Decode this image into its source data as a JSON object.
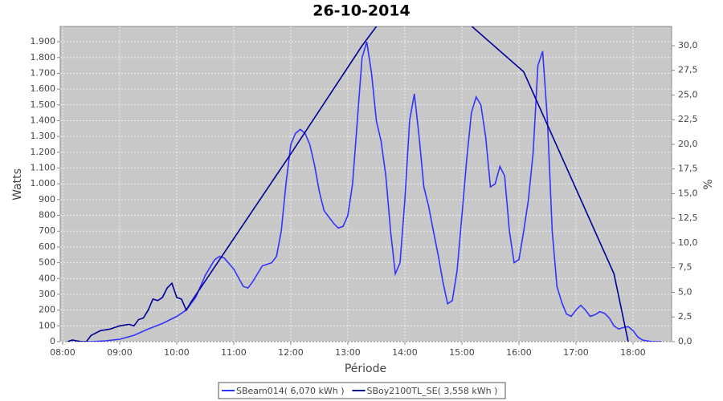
{
  "chart_data": {
    "type": "line",
    "title": "26-10-2014",
    "x_label": "Période",
    "y_label": "Watts",
    "y2_label": "%",
    "xlim": [
      477.5,
      1120.6
    ],
    "xticks": [
      {
        "value": 480,
        "label": "08:00"
      },
      {
        "value": 540,
        "label": "09:00"
      },
      {
        "value": 600,
        "label": "10:00"
      },
      {
        "value": 660,
        "label": "11:00"
      },
      {
        "value": 720,
        "label": "12:00"
      },
      {
        "value": 780,
        "label": "13:00"
      },
      {
        "value": 840,
        "label": "14:00"
      },
      {
        "value": 900,
        "label": "15:00"
      },
      {
        "value": 960,
        "label": "16:00"
      },
      {
        "value": 1020,
        "label": "17:00"
      },
      {
        "value": 1080,
        "label": "18:00"
      }
    ],
    "ylim": [
      0,
      1997
    ],
    "yticks": [
      0,
      100,
      200,
      300,
      400,
      500,
      600,
      700,
      800,
      900,
      {
        "value": 1000,
        "label": "1.000"
      },
      {
        "value": 1100,
        "label": "1.100"
      },
      {
        "value": 1200,
        "label": "1.200"
      },
      {
        "value": 1300,
        "label": "1.300"
      },
      {
        "value": 1400,
        "label": "1.400"
      },
      {
        "value": 1500,
        "label": "1.500"
      },
      {
        "value": 1600,
        "label": "1.600"
      },
      {
        "value": 1700,
        "label": "1.700"
      },
      {
        "value": 1800,
        "label": "1.800"
      },
      {
        "value": 1900,
        "label": "1.900"
      }
    ],
    "y2lim": [
      0,
      31.95
    ],
    "y2ticks": [
      {
        "value": 0,
        "label": "0,0"
      },
      {
        "value": 2.5,
        "label": "2,5"
      },
      {
        "value": 5,
        "label": "5,0"
      },
      {
        "value": 7.5,
        "label": "7,5"
      },
      {
        "value": 10,
        "label": "10,0"
      },
      {
        "value": 12.5,
        "label": "12,5"
      },
      {
        "value": 15,
        "label": "15,0"
      },
      {
        "value": 17.5,
        "label": "17,5"
      },
      {
        "value": 20,
        "label": "20,0"
      },
      {
        "value": 22.5,
        "label": "22,5"
      },
      {
        "value": 25,
        "label": "25,0"
      },
      {
        "value": 27.5,
        "label": "27,5"
      },
      {
        "value": 30,
        "label": "30,0"
      }
    ],
    "grid": true,
    "legend": "bottom",
    "series": [
      {
        "name": "SBeam014( 6,070 kWh )",
        "color": "#3333ff",
        "x": [
          505,
          510,
          525,
          540,
          555,
          570,
          585,
          600,
          610,
          620,
          630,
          640,
          645,
          650,
          660,
          670,
          675,
          680,
          690,
          700,
          705,
          710,
          715,
          720,
          725,
          730,
          735,
          740,
          745,
          750,
          755,
          760,
          765,
          770,
          775,
          780,
          785,
          790,
          795,
          800,
          805,
          810,
          815,
          820,
          825,
          830,
          835,
          840,
          845,
          850,
          855,
          860,
          865,
          870,
          875,
          880,
          885,
          890,
          895,
          900,
          905,
          910,
          915,
          920,
          925,
          930,
          935,
          940,
          945,
          950,
          955,
          960,
          965,
          970,
          975,
          980,
          985,
          990,
          995,
          1000,
          1005,
          1010,
          1015,
          1020,
          1025,
          1030,
          1035,
          1040,
          1045,
          1050,
          1055,
          1060,
          1065,
          1070,
          1075,
          1080,
          1085,
          1090,
          1100,
          1110
        ],
        "values": [
          0,
          0,
          5,
          15,
          40,
          80,
          115,
          160,
          200,
          280,
          420,
          520,
          540,
          530,
          460,
          350,
          340,
          380,
          480,
          500,
          540,
          700,
          1000,
          1250,
          1320,
          1345,
          1320,
          1250,
          1120,
          950,
          830,
          790,
          750,
          720,
          730,
          800,
          1000,
          1400,
          1800,
          1900,
          1700,
          1400,
          1270,
          1050,
          700,
          430,
          500,
          900,
          1400,
          1570,
          1300,
          980,
          860,
          700,
          550,
          380,
          240,
          260,
          450,
          800,
          1150,
          1450,
          1550,
          1500,
          1300,
          980,
          1000,
          1110,
          1050,
          700,
          500,
          520,
          700,
          900,
          1200,
          1750,
          1840,
          1400,
          700,
          350,
          250,
          175,
          160,
          200,
          230,
          200,
          160,
          170,
          190,
          180,
          150,
          100,
          80,
          90,
          95,
          70,
          30,
          10,
          0,
          0
        ]
      },
      {
        "name": "SBoy2100TL_SE( 3,558 kWh )",
        "color": "#000099",
        "x": [
          485,
          490,
          495,
          500,
          505,
          510,
          520,
          530,
          540,
          550,
          555,
          560,
          565,
          570,
          575,
          580,
          585,
          590,
          595,
          600,
          605,
          610,
          615,
          720,
          795,
          860,
          910,
          965,
          1060,
          1075
        ],
        "values": [
          0,
          10,
          5,
          0,
          0,
          40,
          70,
          80,
          100,
          110,
          100,
          140,
          150,
          200,
          270,
          260,
          280,
          340,
          370,
          280,
          270,
          200,
          250,
          1190,
          1875,
          2400,
          2000,
          1710,
          430,
          0
        ]
      }
    ]
  }
}
